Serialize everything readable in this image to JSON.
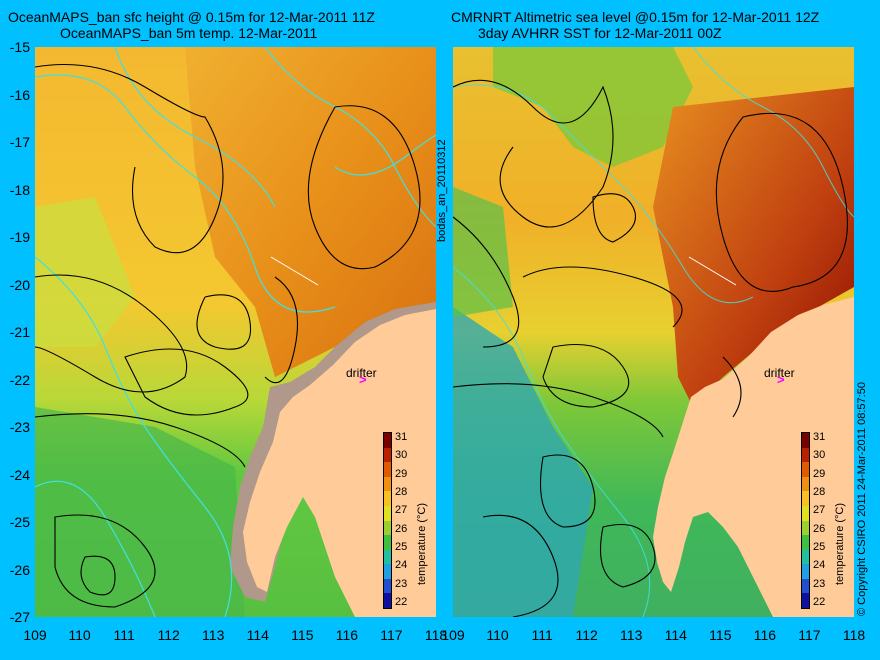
{
  "titles": {
    "left_line1": "OceanMAPS_ban sfc height @ 0.15m for 12-Mar-2011 11Z",
    "left_line2": "OceanMAPS_ban 5m temp. 12-Mar-2011",
    "right_line1": "CMRNRT Altimetric sea level  @0.15m  for 12-Mar-2011 12Z",
    "right_line2": "3day AVHRR SST for 12-Mar-2011 00Z"
  },
  "latitudes": [
    "-15",
    "-16",
    "-17",
    "-18",
    "-19",
    "-20",
    "-21",
    "-22",
    "-23",
    "-24",
    "-25",
    "-26",
    "-27"
  ],
  "longitudes": [
    "109",
    "110",
    "111",
    "112",
    "113",
    "114",
    "115",
    "116",
    "117",
    "118"
  ],
  "map_extent": {
    "lon": [
      109,
      118
    ],
    "lat": [
      -27,
      -15
    ]
  },
  "colorbar": {
    "title": "temperature (°C)",
    "ticks": [
      "31",
      "30",
      "29",
      "28",
      "27",
      "26",
      "25",
      "24",
      "23",
      "22"
    ],
    "colors": [
      "#7a0000",
      "#b82000",
      "#e05a00",
      "#f09010",
      "#f8c020",
      "#e0e020",
      "#9ad030",
      "#40c040",
      "#20c0a0",
      "#20a0e0",
      "#2050d0",
      "#1010a0"
    ]
  },
  "drifter": {
    "label": "drifter",
    "marker": ">"
  },
  "side_labels": {
    "middle": "bodas_an_20110312",
    "right": "© Copyright CSIRO 2011   24-Mar-2011 08:57:50"
  },
  "colors": {
    "background": "#00c0ff",
    "land": "#ffcc99",
    "model_land_mask": "#b0988a",
    "ssh_contour": "#000000",
    "bathymetry_contour": "#40e0e0",
    "drifter": "#ff00ff"
  }
}
